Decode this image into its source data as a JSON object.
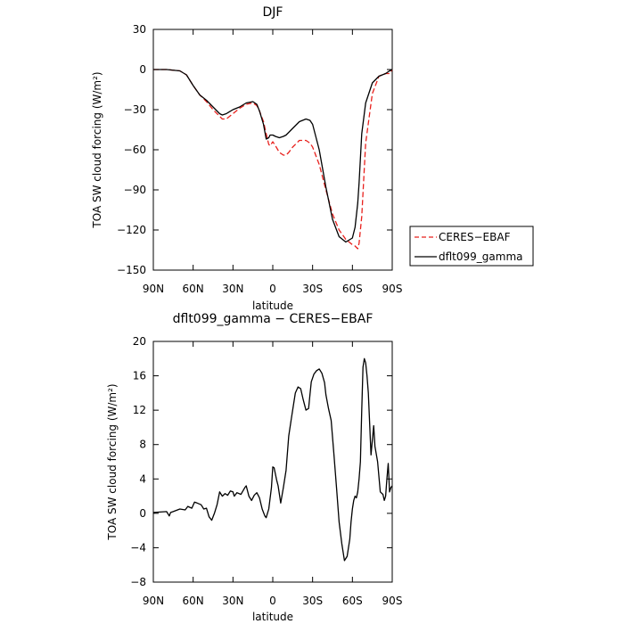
{
  "chart_data": [
    {
      "type": "line",
      "title": "DJF",
      "xlabel": "latitude",
      "ylabel": "TOA SW cloud forcing (W/m²)",
      "xlim": [
        90,
        -90
      ],
      "ylim": [
        -150,
        30
      ],
      "x_ticks": [
        90,
        60,
        30,
        0,
        -30,
        -60,
        -90
      ],
      "x_tick_labels": [
        "90N",
        "60N",
        "30N",
        "0",
        "30S",
        "60S",
        "90S"
      ],
      "y_ticks": [
        30,
        0,
        -30,
        -60,
        -90,
        -120,
        -150
      ],
      "y_tick_labels": [
        "30",
        "0",
        "−30",
        "−60",
        "−90",
        "−120",
        "−150"
      ],
      "legend_position": "right",
      "series": [
        {
          "name": "CERES−EBAF",
          "color": "#e8201c",
          "dash": "dashed",
          "x": [
            90,
            80,
            70,
            65,
            60,
            55,
            50,
            45,
            40,
            38,
            35,
            30,
            25,
            20,
            15,
            12,
            10,
            7,
            5,
            3,
            2,
            0,
            -2,
            -5,
            -8,
            -10,
            -12,
            -15,
            -20,
            -25,
            -28,
            -30,
            -35,
            -40,
            -45,
            -50,
            -55,
            -60,
            -62,
            -64,
            -65,
            -67,
            -70,
            -75,
            -80,
            -85,
            -88,
            -90
          ],
          "y": [
            0,
            0,
            -1,
            -4,
            -12,
            -19,
            -24,
            -30,
            -35,
            -37,
            -37,
            -33,
            -29,
            -26,
            -25,
            -27,
            -31,
            -39,
            -48,
            -56,
            -57,
            -54,
            -57,
            -62,
            -64,
            -64,
            -62,
            -58,
            -53,
            -53,
            -55,
            -58,
            -71,
            -90,
            -108,
            -120,
            -127,
            -131,
            -132,
            -134,
            -130,
            -110,
            -55,
            -18,
            -5,
            -3,
            -3,
            0
          ]
        },
        {
          "name": "dflt099_gamma",
          "color": "#000000",
          "dash": "solid",
          "x": [
            90,
            80,
            70,
            65,
            60,
            55,
            50,
            45,
            40,
            38,
            35,
            30,
            25,
            20,
            15,
            12,
            10,
            7,
            5,
            3,
            2,
            0,
            -2,
            -5,
            -8,
            -10,
            -12,
            -15,
            -20,
            -25,
            -28,
            -30,
            -35,
            -40,
            -45,
            -50,
            -55,
            -60,
            -62,
            -64,
            -65,
            -67,
            -70,
            -75,
            -80,
            -85,
            -88,
            -90
          ],
          "y": [
            0,
            0,
            -1,
            -4,
            -12,
            -19,
            -23,
            -28,
            -33,
            -34,
            -33,
            -30,
            -28,
            -25,
            -24,
            -26,
            -31,
            -41,
            -52,
            -51,
            -49,
            -49,
            -50,
            -51,
            -50,
            -49,
            -47,
            -44,
            -39,
            -37,
            -38,
            -41,
            -60,
            -88,
            -112,
            -125,
            -129,
            -126,
            -118,
            -100,
            -85,
            -48,
            -25,
            -10,
            -5,
            -3,
            -1,
            0
          ]
        }
      ]
    },
    {
      "type": "line",
      "title": "dflt099_gamma − CERES−EBAF",
      "xlabel": "latitude",
      "ylabel": "TOA SW cloud forcing (W/m²)",
      "xlim": [
        90,
        -90
      ],
      "ylim": [
        -8,
        20
      ],
      "x_ticks": [
        90,
        60,
        30,
        0,
        -30,
        -60,
        -90
      ],
      "x_tick_labels": [
        "90N",
        "60N",
        "30N",
        "0",
        "30S",
        "60S",
        "90S"
      ],
      "y_ticks": [
        20,
        16,
        12,
        8,
        4,
        0,
        -4,
        -8
      ],
      "y_tick_labels": [
        "20",
        "16",
        "12",
        "8",
        "4",
        "0",
        "−4",
        "−8"
      ],
      "series": [
        {
          "color": "#000000",
          "x": [
            90,
            80,
            78,
            77,
            75,
            70,
            66,
            64,
            61,
            59,
            57,
            54,
            52,
            50,
            48,
            46,
            44,
            42,
            40,
            38,
            36,
            34,
            32,
            30,
            29,
            27,
            24,
            21,
            20,
            18,
            16,
            14,
            12,
            10,
            8,
            6,
            5,
            3,
            1,
            0,
            -1,
            -3,
            -4,
            -6,
            -8,
            -10,
            -12,
            -14,
            -15,
            -17,
            -19,
            -21,
            -23,
            -25,
            -27,
            -28,
            -29,
            -31,
            -33,
            -35,
            -37,
            -39,
            -40,
            -42,
            -44,
            -46,
            -48,
            -50,
            -52,
            -54,
            -56,
            -58,
            -59,
            -60,
            -61,
            -62,
            -63,
            -64,
            -65,
            -66,
            -67,
            -68,
            -69,
            -70,
            -71,
            -72,
            -74,
            -76,
            -77,
            -79,
            -81,
            -83,
            -84,
            -85,
            -86,
            -87,
            -88,
            -89,
            -90
          ],
          "y": [
            0.1,
            0.2,
            -0.3,
            0.1,
            0.2,
            0.5,
            0.4,
            0.8,
            0.6,
            1.3,
            1.2,
            1.0,
            0.5,
            0.6,
            -0.4,
            -0.8,
            0,
            1,
            2.5,
            2.0,
            2.3,
            2.1,
            2.6,
            2.5,
            2.0,
            2.4,
            2.2,
            3.0,
            3.2,
            2.0,
            1.5,
            2.1,
            2.4,
            1.8,
            0.5,
            -0.3,
            -0.5,
            0.5,
            3.0,
            5.4,
            5.3,
            3.8,
            3.2,
            1.2,
            3.0,
            5.0,
            9.0,
            11.0,
            12.0,
            14.0,
            14.7,
            14.5,
            13.2,
            12.0,
            12.2,
            13.8,
            15.3,
            16.2,
            16.6,
            16.8,
            16.3,
            15.2,
            13.8,
            12.2,
            10.8,
            7.0,
            3.0,
            -1.0,
            -3.5,
            -5.5,
            -5.0,
            -3.0,
            -1.0,
            0.5,
            1.5,
            2.0,
            1.8,
            2.5,
            4.0,
            6.0,
            12.0,
            17.0,
            18.0,
            17.5,
            16.0,
            14.0,
            6.8,
            10.2,
            7.8,
            6.0,
            2.5,
            2.2,
            1.5,
            2.0,
            4.0,
            5.8,
            2.5,
            3.0,
            3.2
          ]
        }
      ]
    }
  ]
}
